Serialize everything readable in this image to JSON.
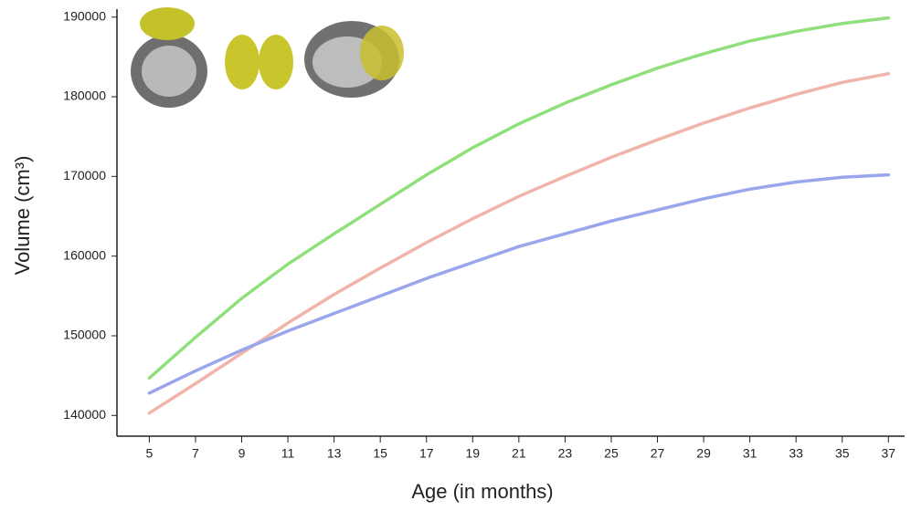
{
  "chart_data": {
    "type": "line",
    "x_label": "Age (in months)",
    "y_label": "Volume (cm³)",
    "x": [
      5,
      7,
      9,
      11,
      13,
      15,
      17,
      19,
      21,
      23,
      25,
      27,
      29,
      31,
      33,
      35,
      37
    ],
    "series": [
      {
        "color": "#8fe07a",
        "values": [
          144700,
          149800,
          154700,
          159000,
          162800,
          166500,
          170200,
          173600,
          176600,
          179200,
          181500,
          183600,
          185400,
          187000,
          188200,
          189200,
          189900
        ]
      },
      {
        "color": "#f0b4aa",
        "values": [
          140300,
          144000,
          147800,
          151600,
          155200,
          158500,
          161700,
          164700,
          167500,
          170000,
          172400,
          174600,
          176700,
          178600,
          180300,
          181800,
          182900
        ]
      },
      {
        "color": "#9aa6ec",
        "values": [
          142800,
          145600,
          148200,
          150600,
          152800,
          155000,
          157200,
          159200,
          161200,
          162800,
          164400,
          165800,
          167200,
          168400,
          169300,
          169900,
          170200
        ]
      }
    ],
    "xlim": [
      3.6,
      37.7
    ],
    "xticks": [
      5,
      7,
      9,
      11,
      13,
      15,
      17,
      19,
      21,
      23,
      25,
      27,
      29,
      31,
      33,
      35,
      37
    ],
    "ylim": [
      137400,
      191000
    ],
    "yticks": [
      140000,
      150000,
      160000,
      170000,
      180000,
      190000
    ]
  }
}
